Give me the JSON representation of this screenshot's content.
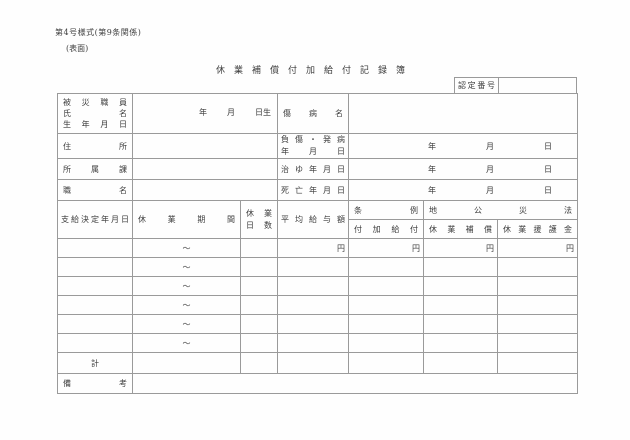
{
  "page": {
    "form_code": "第4号様式(第9条関係)",
    "side_note": "(表面)",
    "title": "休業補償付加給付記録簿",
    "cert_label": "認定番号"
  },
  "upper": {
    "employee_label": [
      "被災職員",
      "氏名",
      "生年月日"
    ],
    "birth_suffix": [
      "年",
      "月",
      "日生"
    ],
    "address_label": "住所",
    "department_label": "所属課",
    "jobtitle_label": "職名",
    "injury_name_label": "傷病名",
    "injury_date_label": [
      "負傷・発病",
      "年月日"
    ],
    "recovery_date_label": "治ゆ年月日",
    "death_date_label": "死亡年月日",
    "date_parts": [
      "年",
      "月",
      "日"
    ]
  },
  "main": {
    "col_decision_date": "支給決定年月日",
    "col_leave_period": "休業期間",
    "col_leave_days": [
      "休業",
      "日数"
    ],
    "col_avg_salary": "平均給与額",
    "grp_ordinance": "条例",
    "col_addl_benefit": "付加給付",
    "grp_chikosai_law": "地公災法",
    "col_leave_comp": "休業補償",
    "col_leave_relief": "休業援護金",
    "yen": "円",
    "range_mark": "〜",
    "total_label": "計",
    "remarks_label": "備考"
  }
}
